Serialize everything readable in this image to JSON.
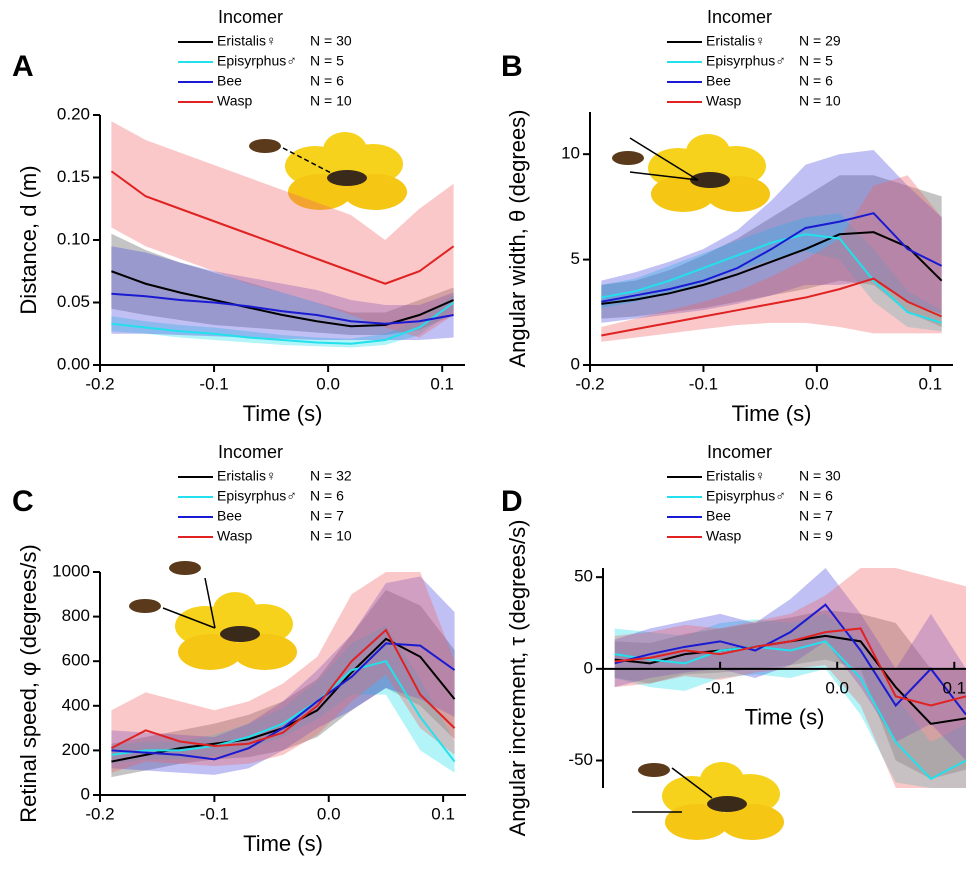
{
  "chart_data": [
    {
      "type": "line",
      "panel": "A",
      "legend_title": "Incomer",
      "xlabel": "Time (s)",
      "ylabel": "Distance, d (m)",
      "xlim": [
        -0.2,
        0.12
      ],
      "ylim": [
        0,
        0.2
      ],
      "xticks": [
        -0.2,
        -0.1,
        {
          "value": 0,
          "label": "0.0"
        },
        0.1
      ],
      "yticks": [
        {
          "value": 0,
          "label": "0.00"
        },
        0.05,
        {
          "value": 0.1,
          "label": "0.10"
        },
        0.15,
        {
          "value": 0.2,
          "label": "0.20"
        }
      ],
      "axis_through_origin": false,
      "x": [
        -0.19,
        -0.16,
        -0.13,
        -0.1,
        -0.07,
        -0.04,
        -0.01,
        0.02,
        0.05,
        0.08,
        0.11
      ],
      "series": [
        {
          "name": "Eristalis♀",
          "n_label": "N = 30",
          "color": "#000000",
          "band_color": "#555555",
          "values": [
            0.075,
            0.065,
            0.058,
            0.052,
            0.046,
            0.04,
            0.035,
            0.031,
            0.032,
            0.04,
            0.052
          ],
          "lower": [
            0.045,
            0.04,
            0.036,
            0.032,
            0.03,
            0.028,
            0.026,
            0.024,
            0.024,
            0.028,
            0.04
          ],
          "upper": [
            0.105,
            0.092,
            0.082,
            0.074,
            0.066,
            0.058,
            0.05,
            0.042,
            0.042,
            0.052,
            0.062
          ]
        },
        {
          "name": "Episyrphus♂",
          "n_label": "N = 5",
          "color": "#22e0ec",
          "band_color": "#22e0ec",
          "values": [
            0.033,
            0.03,
            0.027,
            0.025,
            0.022,
            0.02,
            0.018,
            0.017,
            0.02,
            0.03,
            0.05
          ],
          "lower": [
            0.027,
            0.025,
            0.022,
            0.02,
            0.018,
            0.016,
            0.015,
            0.014,
            0.016,
            0.024,
            0.044
          ],
          "upper": [
            0.039,
            0.035,
            0.032,
            0.03,
            0.027,
            0.024,
            0.022,
            0.021,
            0.025,
            0.036,
            0.056
          ]
        },
        {
          "name": "Bee",
          "n_label": "N = 6",
          "color": "#1a1ad2",
          "band_color": "#4a4ae0",
          "values": [
            0.057,
            0.055,
            0.052,
            0.05,
            0.047,
            0.043,
            0.04,
            0.035,
            0.033,
            0.035,
            0.04
          ],
          "lower": [
            0.025,
            0.025,
            0.024,
            0.023,
            0.022,
            0.021,
            0.02,
            0.02,
            0.02,
            0.02,
            0.022
          ],
          "upper": [
            0.095,
            0.09,
            0.082,
            0.075,
            0.07,
            0.065,
            0.06,
            0.052,
            0.048,
            0.048,
            0.058
          ]
        },
        {
          "name": "Wasp",
          "n_label": "N = 10",
          "color": "#e02222",
          "band_color": "#f06060",
          "values": [
            0.155,
            0.135,
            0.125,
            0.115,
            0.105,
            0.095,
            0.085,
            0.075,
            0.065,
            0.075,
            0.095
          ],
          "lower": [
            0.11,
            0.095,
            0.085,
            0.075,
            0.065,
            0.058,
            0.05,
            0.04,
            0.03,
            0.022,
            0.04
          ],
          "upper": [
            0.195,
            0.18,
            0.17,
            0.16,
            0.15,
            0.14,
            0.13,
            0.12,
            0.1,
            0.125,
            0.145
          ]
        }
      ]
    },
    {
      "type": "line",
      "panel": "B",
      "legend_title": "Incomer",
      "xlabel": "Time (s)",
      "ylabel": "Angular width, θ (degrees)",
      "xlim": [
        -0.2,
        0.12
      ],
      "ylim": [
        0,
        12
      ],
      "xticks": [
        -0.2,
        -0.1,
        {
          "value": 0,
          "label": "0.0"
        },
        0.1
      ],
      "yticks": [
        0,
        5,
        10
      ],
      "axis_through_origin": false,
      "x": [
        -0.19,
        -0.16,
        -0.13,
        -0.1,
        -0.07,
        -0.04,
        -0.01,
        0.02,
        0.05,
        0.08,
        0.11
      ],
      "series": [
        {
          "name": "Eristalis♀",
          "n_label": "N = 29",
          "color": "#000000",
          "band_color": "#555555",
          "values": [
            2.9,
            3.1,
            3.4,
            3.8,
            4.3,
            4.9,
            5.5,
            6.2,
            6.3,
            5.6,
            4.0
          ],
          "lower": [
            2.2,
            2.3,
            2.5,
            2.7,
            3.0,
            3.3,
            3.6,
            4.0,
            3.8,
            2.5,
            1.8
          ],
          "upper": [
            3.8,
            4.0,
            4.5,
            5.2,
            6.0,
            7.0,
            8.0,
            9.0,
            9.0,
            8.5,
            8.0
          ]
        },
        {
          "name": "Episyrphus♂",
          "n_label": "N = 5",
          "color": "#22e0ec",
          "band_color": "#22e0ec",
          "values": [
            3.2,
            3.5,
            4.0,
            4.6,
            5.2,
            5.8,
            6.2,
            6.0,
            4.0,
            2.5,
            2.0
          ],
          "lower": [
            2.7,
            3.0,
            3.4,
            3.9,
            4.5,
            5.0,
            5.4,
            5.0,
            3.0,
            1.8,
            1.6
          ],
          "upper": [
            3.8,
            4.1,
            4.7,
            5.3,
            5.9,
            6.5,
            7.0,
            7.2,
            5.5,
            3.5,
            2.6
          ]
        },
        {
          "name": "Bee",
          "n_label": "N = 6",
          "color": "#1a1ad2",
          "band_color": "#4a4ae0",
          "values": [
            3.0,
            3.3,
            3.6,
            4.0,
            4.6,
            5.5,
            6.5,
            6.8,
            7.2,
            5.5,
            4.7
          ],
          "lower": [
            2.0,
            2.2,
            2.4,
            2.6,
            2.9,
            3.3,
            3.8,
            3.8,
            4.0,
            3.0,
            2.4
          ],
          "upper": [
            4.0,
            4.4,
            4.9,
            5.5,
            6.4,
            7.8,
            9.5,
            10.0,
            10.2,
            8.5,
            7.0
          ]
        },
        {
          "name": "Wasp",
          "n_label": "N = 10",
          "color": "#e02222",
          "band_color": "#f06060",
          "values": [
            1.4,
            1.7,
            2.0,
            2.3,
            2.6,
            2.9,
            3.2,
            3.6,
            4.1,
            3.0,
            2.3
          ],
          "lower": [
            1.1,
            1.3,
            1.5,
            1.7,
            1.9,
            2.0,
            2.0,
            1.8,
            1.5,
            1.5,
            1.5
          ],
          "upper": [
            1.8,
            2.2,
            2.6,
            3.0,
            3.5,
            4.2,
            5.0,
            6.0,
            8.5,
            9.0,
            7.0
          ]
        }
      ]
    },
    {
      "type": "line",
      "panel": "C",
      "legend_title": "Incomer",
      "xlabel": "Time (s)",
      "ylabel": "Retinal speed, φ (degrees/s)",
      "xlim": [
        -0.2,
        0.12
      ],
      "ylim": [
        0,
        1000
      ],
      "xticks": [
        -0.2,
        -0.1,
        {
          "value": 0,
          "label": "0.0"
        },
        0.1
      ],
      "yticks": [
        0,
        200,
        400,
        600,
        800,
        1000
      ],
      "axis_through_origin": false,
      "x": [
        -0.19,
        -0.16,
        -0.13,
        -0.1,
        -0.07,
        -0.04,
        -0.01,
        0.02,
        0.05,
        0.08,
        0.11
      ],
      "series": [
        {
          "name": "Eristalis♀",
          "n_label": "N = 32",
          "color": "#000000",
          "band_color": "#555555",
          "values": [
            150,
            180,
            210,
            230,
            250,
            300,
            380,
            550,
            700,
            620,
            430
          ],
          "lower": [
            80,
            110,
            140,
            160,
            170,
            200,
            260,
            380,
            480,
            400,
            250
          ],
          "upper": [
            230,
            260,
            290,
            320,
            360,
            420,
            520,
            720,
            920,
            850,
            650
          ]
        },
        {
          "name": "Episyrphus♂",
          "n_label": "N = 6",
          "color": "#22e0ec",
          "band_color": "#22e0ec",
          "values": [
            180,
            200,
            200,
            220,
            260,
            320,
            420,
            560,
            600,
            350,
            150
          ],
          "lower": [
            140,
            160,
            160,
            175,
            210,
            260,
            340,
            450,
            450,
            200,
            100
          ],
          "upper": [
            220,
            240,
            240,
            270,
            320,
            390,
            510,
            680,
            760,
            520,
            240
          ]
        },
        {
          "name": "Bee",
          "n_label": "N = 7",
          "color": "#1a1ad2",
          "band_color": "#4a4ae0",
          "values": [
            200,
            190,
            180,
            160,
            210,
            300,
            420,
            530,
            680,
            670,
            560
          ],
          "lower": [
            120,
            110,
            100,
            90,
            120,
            200,
            300,
            380,
            480,
            430,
            350
          ],
          "upper": [
            290,
            280,
            270,
            260,
            320,
            420,
            560,
            720,
            950,
            980,
            820
          ]
        },
        {
          "name": "Wasp",
          "n_label": "N = 10",
          "color": "#e02222",
          "band_color": "#f06060",
          "values": [
            210,
            290,
            240,
            220,
            230,
            280,
            400,
            600,
            740,
            450,
            300
          ],
          "lower": [
            100,
            150,
            140,
            130,
            140,
            180,
            270,
            420,
            540,
            300,
            180
          ],
          "upper": [
            380,
            460,
            420,
            380,
            420,
            500,
            620,
            900,
            1000,
            1000,
            600
          ]
        }
      ]
    },
    {
      "type": "line",
      "panel": "D",
      "legend_title": "Incomer",
      "xlabel": "Time (s)",
      "ylabel": "Angular increment, τ (degrees/s)",
      "xlim": [
        -0.2,
        0.11
      ],
      "ylim": [
        -65,
        55
      ],
      "xticks": [
        -0.1,
        {
          "value": 0,
          "label": "0.0"
        },
        0.1
      ],
      "yticks": [
        -50,
        0,
        50
      ],
      "axis_through_origin": true,
      "x": [
        -0.19,
        -0.16,
        -0.13,
        -0.1,
        -0.07,
        -0.04,
        -0.01,
        0.02,
        0.05,
        0.08,
        0.11
      ],
      "series": [
        {
          "name": "Eristalis♀",
          "n_label": "N = 30",
          "color": "#000000",
          "band_color": "#555555",
          "values": [
            5,
            3,
            8,
            10,
            12,
            15,
            18,
            15,
            -10,
            -30,
            -27
          ],
          "lower": [
            -5,
            -8,
            -3,
            -2,
            0,
            2,
            5,
            0,
            -50,
            -60,
            -55
          ],
          "upper": [
            15,
            14,
            19,
            22,
            25,
            28,
            32,
            30,
            25,
            0,
            0
          ]
        },
        {
          "name": "Episyrphus♂",
          "n_label": "N = 6",
          "color": "#22e0ec",
          "band_color": "#22e0ec",
          "values": [
            8,
            5,
            3,
            10,
            12,
            10,
            15,
            -5,
            -40,
            -60,
            -50
          ],
          "lower": [
            -5,
            -10,
            -12,
            -5,
            -3,
            -5,
            0,
            -25,
            -62,
            -65,
            -65
          ],
          "upper": [
            22,
            20,
            18,
            25,
            27,
            25,
            30,
            15,
            -15,
            -40,
            -30
          ]
        },
        {
          "name": "Bee",
          "n_label": "N = 7",
          "color": "#1a1ad2",
          "band_color": "#4a4ae0",
          "values": [
            3,
            8,
            12,
            15,
            10,
            20,
            35,
            10,
            -20,
            0,
            -25
          ],
          "lower": [
            -10,
            -5,
            -2,
            0,
            -5,
            2,
            15,
            -10,
            -40,
            -30,
            -50
          ],
          "upper": [
            16,
            22,
            26,
            30,
            25,
            38,
            55,
            30,
            0,
            30,
            0
          ]
        },
        {
          "name": "Wasp",
          "n_label": "N = 9",
          "color": "#e02222",
          "band_color": "#f06060",
          "values": [
            4,
            6,
            10,
            8,
            12,
            15,
            20,
            22,
            -15,
            -20,
            -15
          ],
          "lower": [
            -10,
            -8,
            -4,
            -6,
            -2,
            0,
            2,
            -20,
            -65,
            -65,
            -65
          ],
          "upper": [
            18,
            20,
            24,
            22,
            26,
            30,
            40,
            55,
            55,
            50,
            45
          ]
        }
      ]
    }
  ]
}
